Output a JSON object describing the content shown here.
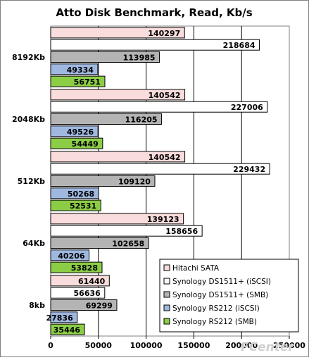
{
  "chart_data": {
    "type": "bar",
    "orientation": "horizontal",
    "title": "Atto Disk Benchmark, Read, Kb/s",
    "xlabel": "",
    "ylabel": "",
    "xlim": [
      0,
      250000
    ],
    "x_ticks": [
      "0",
      "50000",
      "100000",
      "150000",
      "200000",
      "250000"
    ],
    "grid": true,
    "legend_position": "bottom-right",
    "categories": [
      "8192Kb",
      "2048Kb",
      "512Kb",
      "64Kb",
      "8kb"
    ],
    "series": [
      {
        "name": "Hitachi SATA",
        "color": "#f9dcdc",
        "values": [
          140297,
          140542,
          140542,
          139123,
          61440
        ]
      },
      {
        "name": "Synology DS1511+ (iSCSI)",
        "color": "#ffffff",
        "values": [
          218684,
          227006,
          229432,
          158656,
          56636
        ]
      },
      {
        "name": "Synology DS1511+ (SMB)",
        "color": "#b4b4b4",
        "values": [
          113985,
          116205,
          109120,
          102658,
          69299
        ]
      },
      {
        "name": "Synology RS212 (iSCSI)",
        "color": "#9fb8e0",
        "values": [
          49334,
          49526,
          50268,
          40206,
          27836
        ]
      },
      {
        "name": "Synology RS212 (SMB)",
        "color": "#8ccd46",
        "values": [
          56751,
          54449,
          52531,
          53828,
          35446
        ]
      }
    ]
  },
  "watermark": "FCenter"
}
